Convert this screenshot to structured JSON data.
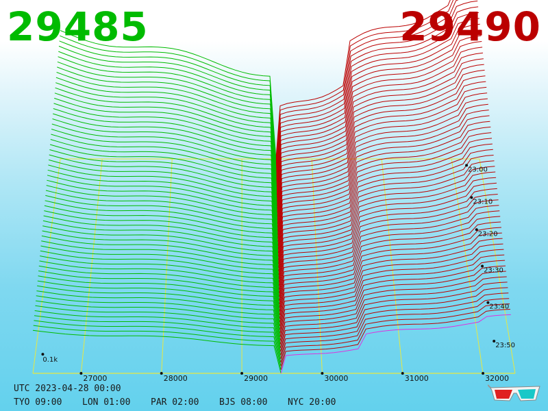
{
  "header": {
    "bid_price": "29485",
    "ask_price": "29490",
    "bid_color": "#00bb00",
    "ask_color": "#bb0000"
  },
  "footer": {
    "utc": "UTC 2023-04-28 00:00",
    "timezones": [
      {
        "label": "TYO 09:00"
      },
      {
        "label": "LON 01:00"
      },
      {
        "label": "PAR 02:00"
      },
      {
        "label": "BJS 08:00"
      },
      {
        "label": "NYC 20:00"
      }
    ]
  },
  "icons": {
    "glasses": "3d-glasses-icon"
  },
  "chart_data": {
    "type": "area",
    "projection": "3d-perspective",
    "x_ticks": [
      "27000",
      "28000",
      "29000",
      "30000",
      "31000",
      "32000"
    ],
    "x_tick_values": [
      27000,
      28000,
      29000,
      30000,
      31000,
      32000
    ],
    "x_range": [
      26400,
      32400
    ],
    "z_label": "0.1k",
    "time_ticks": [
      "23:00",
      "23:10",
      "23:20",
      "23:30",
      "23:40",
      "23:50"
    ],
    "mid_price": 29487,
    "snapshots": 60,
    "bid_color": "#00bb00",
    "ask_color": "#bb0000",
    "current_ask_color": "#dd33dd",
    "grid_color": "#e8e840"
  }
}
